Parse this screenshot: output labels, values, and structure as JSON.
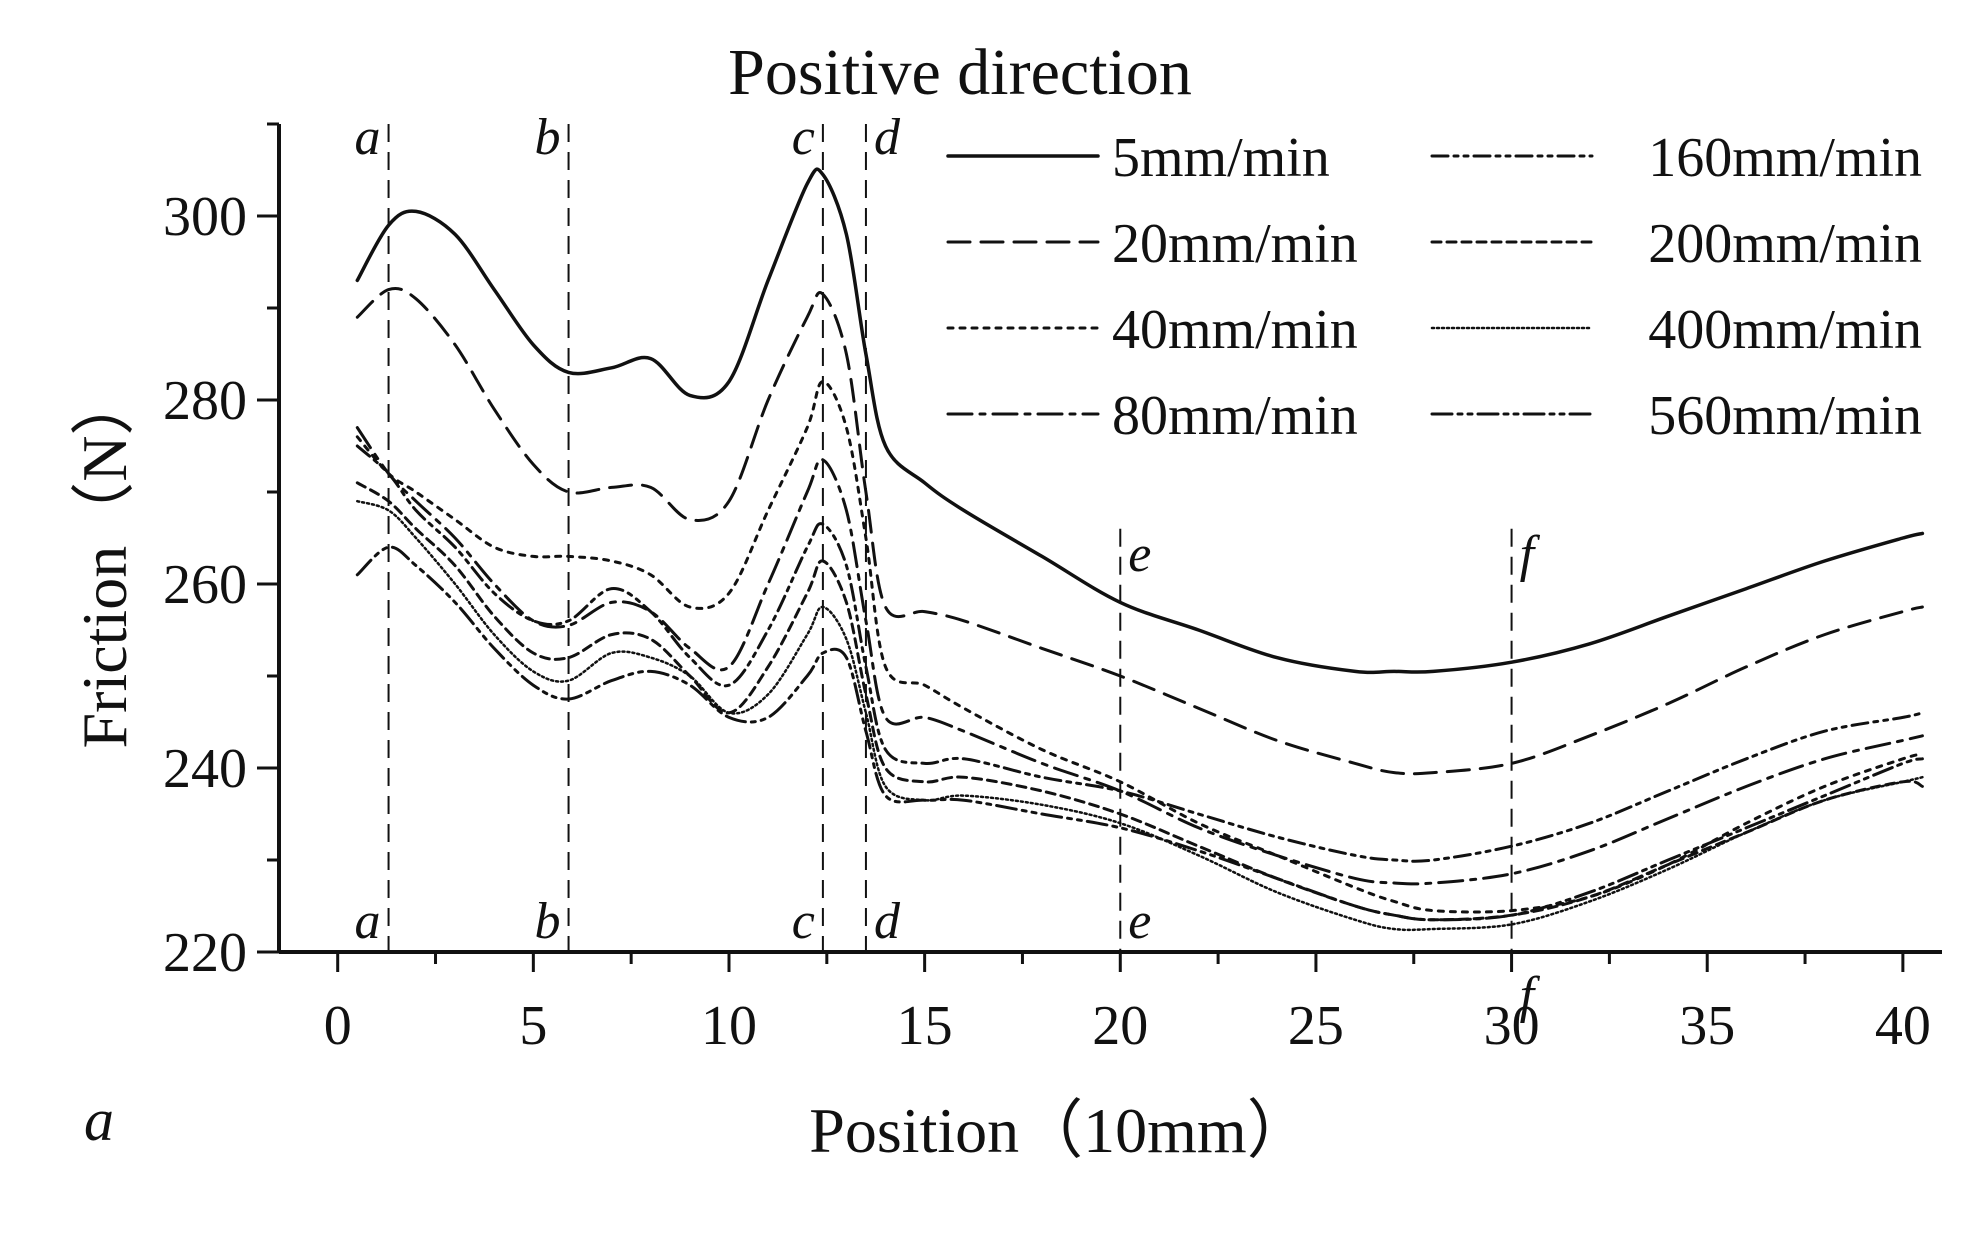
{
  "panel_label": "a",
  "chart_data": {
    "type": "line",
    "title": "Positive direction",
    "xlabel": "Position（10mm）",
    "ylabel": "Friction（N）",
    "xlim": [
      -1.5,
      41
    ],
    "ylim": [
      220,
      310
    ],
    "xticks": [
      0,
      5,
      10,
      15,
      20,
      25,
      30,
      35,
      40
    ],
    "xtick_labels": [
      "0",
      "5",
      "10",
      "15",
      "20",
      "25",
      "30",
      "35",
      "40"
    ],
    "yticks": [
      220,
      240,
      260,
      280,
      300
    ],
    "ytick_labels": [
      "220",
      "240",
      "260",
      "280",
      "300"
    ],
    "grid": false,
    "legend_position": "top-right",
    "markers": [
      {
        "label": "a",
        "x": 1.3
      },
      {
        "label": "b",
        "x": 5.9
      },
      {
        "label": "c",
        "x": 12.4
      },
      {
        "label": "d",
        "x": 13.5
      },
      {
        "label": "e",
        "x": 20
      },
      {
        "label": "f",
        "x": 30
      }
    ],
    "x": [
      0.5,
      1.3,
      2,
      3,
      4,
      5,
      5.9,
      7,
      8,
      9,
      10,
      11,
      12,
      12.4,
      13,
      13.5,
      14,
      15,
      16,
      18,
      20,
      22,
      24,
      26,
      27,
      28,
      30,
      32,
      34,
      36,
      38,
      40,
      40.5
    ],
    "series": [
      {
        "name": "5mm/min",
        "dash": "",
        "width": 3.5,
        "values": [
          293,
          299,
          300.5,
          298,
          292,
          286,
          283,
          283.5,
          284.5,
          280.5,
          282,
          293,
          303.5,
          304.5,
          298,
          285,
          275,
          271,
          268,
          263,
          258,
          255,
          252,
          250.5,
          250.5,
          250.5,
          251.5,
          253.5,
          256.5,
          259.5,
          262.5,
          265,
          265.5
        ]
      },
      {
        "name": "20mm/min",
        "dash": "22 11",
        "width": 3,
        "values": [
          289,
          292,
          291,
          286,
          279,
          273,
          270,
          270.5,
          270.5,
          267,
          269,
          280,
          289,
          291.5,
          285,
          270,
          257.5,
          257,
          256,
          253,
          250,
          246.5,
          243,
          240.5,
          239.5,
          239.5,
          240.5,
          243.5,
          247,
          251,
          254.5,
          257,
          257.5
        ]
      },
      {
        "name": "40mm/min",
        "dash": "5 7",
        "width": 3,
        "values": [
          276,
          272,
          270,
          267,
          264,
          263,
          263,
          262.5,
          261,
          257.5,
          259,
          268,
          277,
          282,
          277,
          265,
          251,
          249,
          246.5,
          242,
          238.5,
          234,
          230.5,
          227,
          225.5,
          224.5,
          224.5,
          226,
          229.5,
          234,
          238,
          241,
          241.5
        ]
      },
      {
        "name": "80mm/min",
        "dash": "24 8 5 8",
        "width": 3,
        "values": [
          277,
          272,
          269,
          265,
          260,
          256,
          255.5,
          258,
          257,
          253,
          251,
          260,
          270,
          273.5,
          268,
          256,
          245.5,
          245.5,
          244,
          240.5,
          237.5,
          233.5,
          230.5,
          228,
          227.5,
          227.5,
          228.5,
          231,
          234.5,
          238,
          241,
          243,
          243.5
        ]
      },
      {
        "name": "160mm/min",
        "dash": "16 6 4 6 4 6",
        "width": 3,
        "values": [
          275,
          272,
          268,
          264,
          259,
          256,
          256,
          259.5,
          257,
          252,
          249,
          255,
          264,
          266.5,
          262,
          251,
          242,
          240.5,
          241,
          239,
          237.5,
          235,
          232.5,
          230.5,
          230,
          230,
          231.5,
          234,
          237.5,
          241,
          244,
          245.5,
          246
        ]
      },
      {
        "name": "200mm/min",
        "dash": "9 6",
        "width": 3,
        "values": [
          271,
          269,
          266,
          262,
          256.5,
          252.5,
          252,
          254.5,
          254,
          250,
          246,
          251,
          259,
          262.5,
          258,
          248,
          240,
          238.5,
          239,
          237.5,
          235,
          231.5,
          228,
          225,
          224,
          223.5,
          224,
          226,
          229.5,
          233,
          236.5,
          238.5,
          238
        ]
      },
      {
        "name": "400mm/min",
        "dash": "2 3",
        "width": 2.5,
        "values": [
          269,
          268,
          265,
          260,
          254.5,
          250.5,
          249.5,
          252.5,
          252,
          250,
          246,
          248,
          254.5,
          257.5,
          254,
          246,
          238,
          236.5,
          237,
          236,
          234,
          230.5,
          226.5,
          223.5,
          222.5,
          222.5,
          223,
          225.5,
          229,
          233,
          236.5,
          238.5,
          239
        ]
      },
      {
        "name": "560mm/min",
        "dash": "20 6 4 6 4 6",
        "width": 3,
        "values": [
          261,
          264,
          262,
          258,
          253,
          249,
          247.5,
          249.5,
          250.5,
          249,
          245.5,
          245.5,
          250,
          252.5,
          252,
          244,
          237,
          236.5,
          236.5,
          235,
          233.5,
          231,
          228,
          225,
          224,
          223.5,
          224,
          226.5,
          230,
          233.5,
          237,
          240.5,
          241
        ]
      }
    ]
  }
}
